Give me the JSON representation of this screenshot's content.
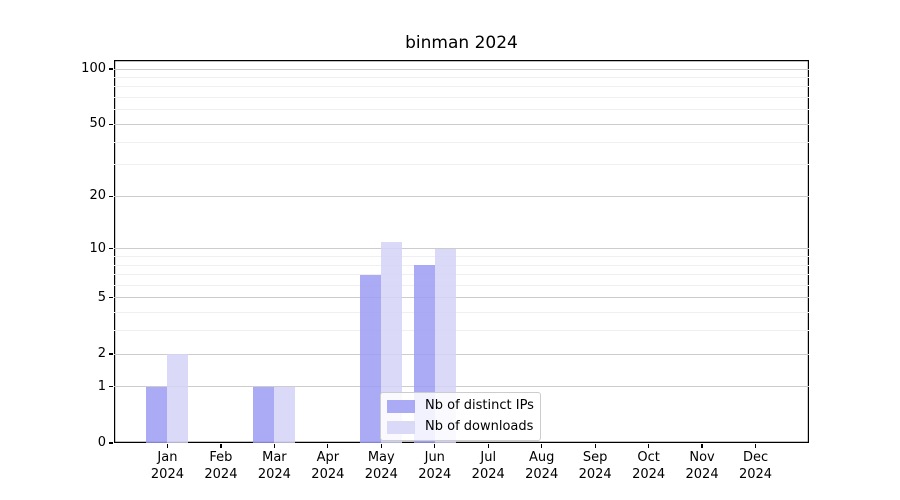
{
  "chart_data": {
    "type": "bar",
    "title": "binman 2024",
    "categories": [
      "Jan",
      "Feb",
      "Mar",
      "Apr",
      "May",
      "Jun",
      "Jul",
      "Aug",
      "Sep",
      "Oct",
      "Nov",
      "Dec"
    ],
    "category_year": "2024",
    "series": [
      {
        "name": "Nb of distinct IPs",
        "color": "rgba(155,155,243,0.85)",
        "values": [
          1,
          0,
          1,
          0,
          7,
          8,
          0,
          0,
          0,
          0,
          0,
          0
        ]
      },
      {
        "name": "Nb of downloads",
        "color": "rgba(212,212,247,0.85)",
        "values": [
          2,
          0,
          1,
          0,
          11,
          10,
          0,
          0,
          0,
          0,
          0,
          0
        ]
      }
    ],
    "yscale": "log1p",
    "yticks": [
      0,
      1,
      2,
      5,
      10,
      20,
      50,
      100
    ],
    "yticks_minor": [
      3,
      4,
      6,
      7,
      8,
      9,
      30,
      40,
      60,
      70,
      80,
      90
    ],
    "ylim": [
      0,
      112
    ],
    "grid": true,
    "legend_location": "lower-center-inside",
    "colors": {
      "grid_major": "#cccccc",
      "grid_minor": "#efefef",
      "axis": "#000000",
      "text": "#000000",
      "legend_border": "#cccccc",
      "legend_background": "rgba(255,255,255,0.85)",
      "background": "#ffffff"
    }
  }
}
